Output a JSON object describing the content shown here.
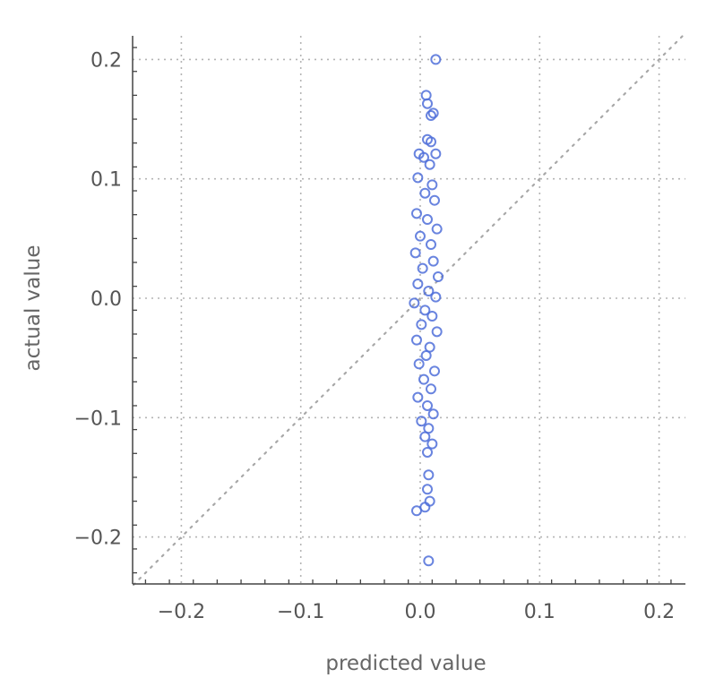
{
  "chart_data": {
    "type": "scatter",
    "xlabel": "predicted value",
    "ylabel": "actual value",
    "xlim": [
      -0.24,
      0.22
    ],
    "ylim": [
      -0.24,
      0.22
    ],
    "x_ticks": [
      -0.2,
      -0.1,
      0.0,
      0.1,
      0.2
    ],
    "y_ticks": [
      -0.2,
      -0.1,
      0.0,
      0.1,
      0.2
    ],
    "x_tick_labels": [
      "−0.2",
      "−0.1",
      "0.0",
      "0.1",
      "0.2"
    ],
    "y_tick_labels": [
      "−0.2",
      "−0.1",
      "0.0",
      "0.1",
      "0.2"
    ],
    "grid": true,
    "grid_style": "dotted",
    "reference_line": "y = x",
    "colors": {
      "points": "#4f6fd9",
      "grid": "#b4b4b4",
      "axis": "#444444",
      "reference": "#a8a8a8"
    },
    "marker": "open-circle",
    "series": [
      {
        "points": [
          [
            0.013,
            0.2
          ],
          [
            0.005,
            0.17
          ],
          [
            0.006,
            0.163
          ],
          [
            0.009,
            0.153
          ],
          [
            0.011,
            0.155
          ],
          [
            0.006,
            0.133
          ],
          [
            0.009,
            0.131
          ],
          [
            0.013,
            0.121
          ],
          [
            -0.001,
            0.121
          ],
          [
            0.003,
            0.118
          ],
          [
            0.008,
            0.112
          ],
          [
            -0.002,
            0.101
          ],
          [
            0.01,
            0.095
          ],
          [
            0.004,
            0.088
          ],
          [
            0.012,
            0.082
          ],
          [
            -0.003,
            0.071
          ],
          [
            0.006,
            0.066
          ],
          [
            0.014,
            0.058
          ],
          [
            0.0,
            0.052
          ],
          [
            0.009,
            0.045
          ],
          [
            -0.004,
            0.038
          ],
          [
            0.011,
            0.031
          ],
          [
            0.002,
            0.025
          ],
          [
            0.015,
            0.018
          ],
          [
            -0.002,
            0.012
          ],
          [
            0.007,
            0.006
          ],
          [
            0.013,
            0.001
          ],
          [
            -0.005,
            -0.004
          ],
          [
            0.004,
            -0.01
          ],
          [
            0.01,
            -0.015
          ],
          [
            0.001,
            -0.022
          ],
          [
            0.014,
            -0.028
          ],
          [
            -0.003,
            -0.035
          ],
          [
            0.008,
            -0.041
          ],
          [
            0.005,
            -0.048
          ],
          [
            -0.001,
            -0.055
          ],
          [
            0.012,
            -0.061
          ],
          [
            0.003,
            -0.068
          ],
          [
            0.009,
            -0.076
          ],
          [
            -0.002,
            -0.083
          ],
          [
            0.006,
            -0.09
          ],
          [
            0.011,
            -0.097
          ],
          [
            0.001,
            -0.103
          ],
          [
            0.007,
            -0.109
          ],
          [
            0.004,
            -0.116
          ],
          [
            0.01,
            -0.122
          ],
          [
            0.006,
            -0.129
          ],
          [
            0.007,
            -0.148
          ],
          [
            0.006,
            -0.16
          ],
          [
            0.008,
            -0.17
          ],
          [
            0.004,
            -0.175
          ],
          [
            -0.003,
            -0.178
          ],
          [
            0.007,
            -0.22
          ]
        ]
      }
    ]
  }
}
